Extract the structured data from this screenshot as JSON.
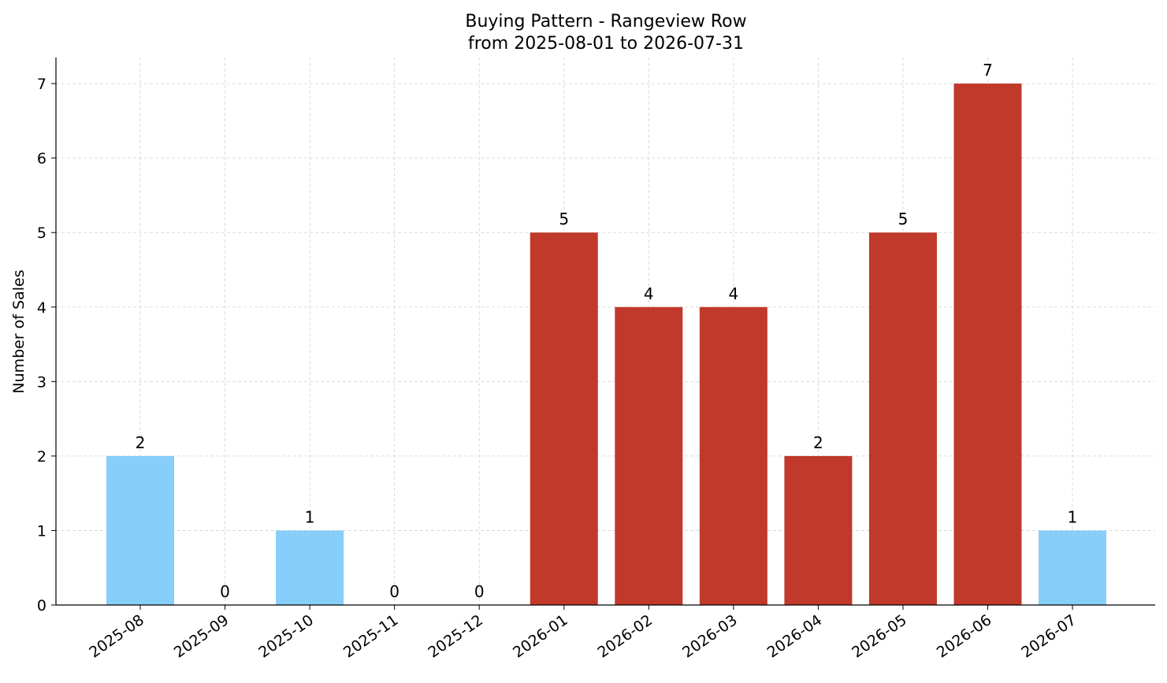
{
  "chart_data": {
    "type": "bar",
    "title": "Buying Pattern - Rangeview Row",
    "subtitle": "from 2025-08-01 to 2026-07-31",
    "xlabel": "",
    "ylabel": "Number of Sales",
    "categories": [
      "2025-08",
      "2025-09",
      "2025-10",
      "2025-11",
      "2025-12",
      "2026-01",
      "2026-02",
      "2026-03",
      "2026-04",
      "2026-05",
      "2026-06",
      "2026-07"
    ],
    "values": [
      2,
      0,
      1,
      0,
      0,
      5,
      4,
      4,
      2,
      5,
      7,
      1
    ],
    "bar_colors": [
      "#87CEFA",
      "#87CEFA",
      "#87CEFA",
      "#87CEFA",
      "#87CEFA",
      "#C0392B",
      "#C0392B",
      "#C0392B",
      "#C0392B",
      "#C0392B",
      "#C0392B",
      "#87CEFA"
    ],
    "data_labels": [
      "2",
      "0",
      "1",
      "0",
      "0",
      "5",
      "4",
      "4",
      "2",
      "5",
      "7",
      "1"
    ],
    "yticks": [
      0,
      1,
      2,
      3,
      4,
      5,
      6,
      7
    ],
    "ylim": [
      0,
      7.35
    ],
    "grid": true,
    "legend": "none"
  }
}
